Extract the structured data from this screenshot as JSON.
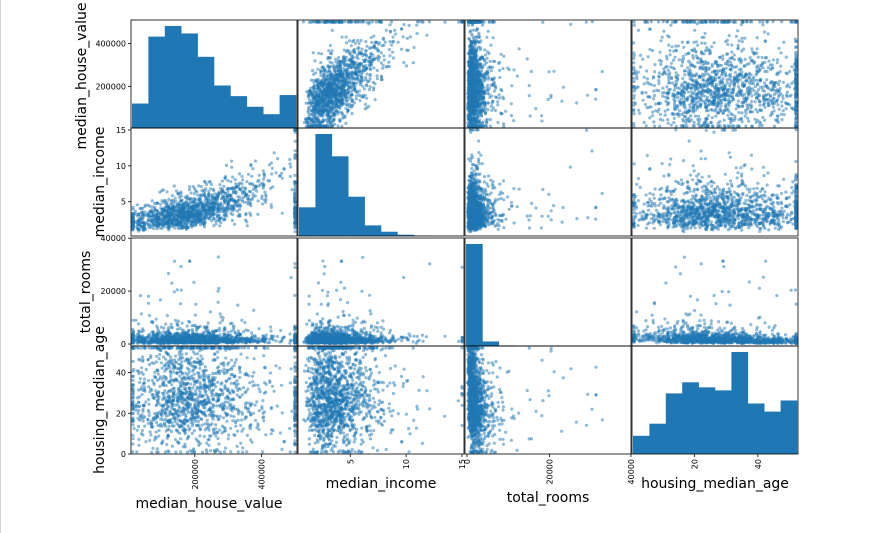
{
  "chart_data": {
    "type": "scatter",
    "variables": [
      "median_house_value",
      "median_income",
      "total_rooms",
      "housing_median_age"
    ],
    "colors": {
      "marker": "#1f77b4",
      "frame": "#000000"
    },
    "ranges": {
      "median_house_value": [
        14999,
        500001
      ],
      "median_income": [
        0.5,
        15.0
      ],
      "total_rooms": [
        2,
        39320
      ],
      "housing_median_age": [
        1,
        52
      ]
    },
    "y_ticks": {
      "median_house_value": [
        200000,
        400000
      ],
      "median_income": [
        5,
        10,
        15
      ],
      "total_rooms": [
        0,
        20000,
        40000
      ],
      "housing_median_age": [
        0,
        20,
        40
      ]
    },
    "y_tick_labels": {
      "median_house_value": [
        "200000",
        "400000"
      ],
      "median_income": [
        "5",
        "10",
        "15"
      ],
      "total_rooms": [
        "0",
        "20000",
        "40000"
      ],
      "housing_median_age": [
        "0",
        "20",
        "40"
      ]
    },
    "x_ticks": {
      "median_house_value": [
        200000,
        400000
      ],
      "median_income": [
        5,
        10,
        15
      ],
      "total_rooms": [
        0,
        20000,
        40000
      ],
      "housing_median_age": [
        20,
        40
      ]
    },
    "x_tick_labels": {
      "median_house_value": [
        "200000",
        "400000"
      ],
      "median_income": [
        "5",
        "10",
        "15"
      ],
      "total_rooms": [
        "0",
        "20000",
        "40000"
      ],
      "housing_median_age": [
        "20",
        "40"
      ]
    },
    "histograms": {
      "median_house_value": [
        115,
        430,
        480,
        445,
        335,
        200,
        150,
        100,
        65,
        155
      ],
      "median_income": [
        270,
        960,
        750,
        370,
        100,
        40,
        12,
        5,
        2,
        2
      ],
      "total_rooms": [
        3600,
        160,
        20,
        8,
        3,
        1,
        1,
        1,
        1,
        1
      ],
      "housing_median_age": [
        90,
        150,
        300,
        355,
        330,
        315,
        505,
        250,
        210,
        265
      ]
    },
    "axis_labels": {
      "x": [
        "median_house_value",
        "median_income",
        "total_rooms",
        "housing_median_age"
      ],
      "y": [
        "median_house_value",
        "median_income",
        "total_rooms",
        "housing_median_age"
      ]
    }
  }
}
